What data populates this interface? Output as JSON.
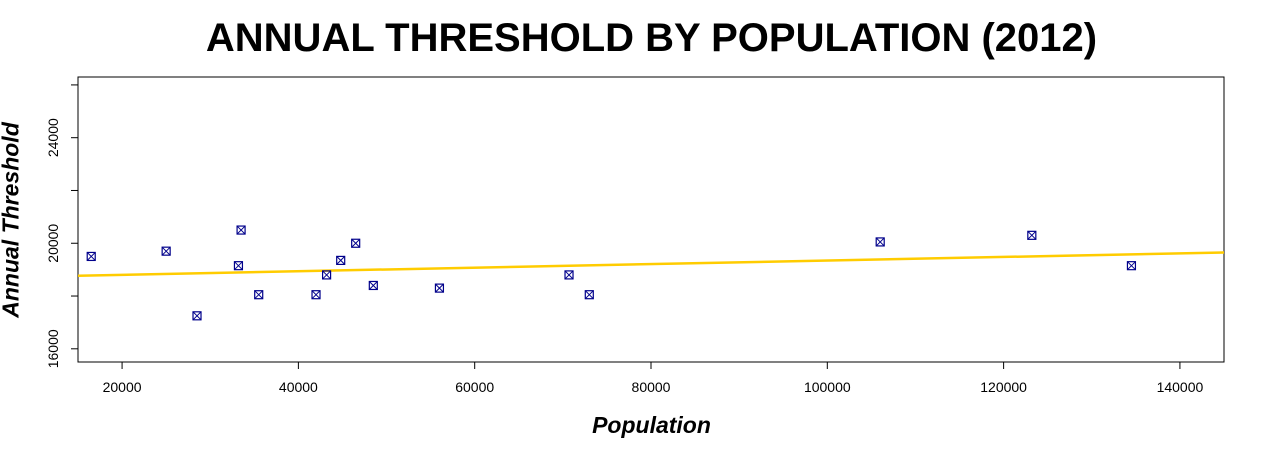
{
  "chart_data": {
    "type": "scatter",
    "title": "ANNUAL THRESHOLD BY POPULATION (2012)",
    "xlabel": "Population",
    "ylabel": "Annual Threshold",
    "xlim": [
      15000,
      145000
    ],
    "ylim": [
      15500,
      26300
    ],
    "x_ticks": [
      20000,
      40000,
      60000,
      80000,
      100000,
      120000,
      140000
    ],
    "y_ticks": [
      16000,
      18000,
      20000,
      22000,
      24000,
      26000
    ],
    "y_tick_labels": [
      "16000",
      "",
      "20000",
      "",
      "24000",
      ""
    ],
    "grid": false,
    "point_color": "#00008b",
    "points": [
      {
        "x": 16500,
        "y": 19500
      },
      {
        "x": 25000,
        "y": 19700
      },
      {
        "x": 28500,
        "y": 17250
      },
      {
        "x": 33200,
        "y": 19150
      },
      {
        "x": 33500,
        "y": 20500
      },
      {
        "x": 35500,
        "y": 18050
      },
      {
        "x": 42000,
        "y": 18050
      },
      {
        "x": 43200,
        "y": 18800
      },
      {
        "x": 44800,
        "y": 19350
      },
      {
        "x": 46500,
        "y": 20000
      },
      {
        "x": 48500,
        "y": 18400
      },
      {
        "x": 56000,
        "y": 18300
      },
      {
        "x": 70700,
        "y": 18800
      },
      {
        "x": 73000,
        "y": 18050
      },
      {
        "x": 106000,
        "y": 20050
      },
      {
        "x": 123200,
        "y": 20300
      },
      {
        "x": 134500,
        "y": 19150
      }
    ],
    "fit_line": {
      "color": "#ffcc00",
      "x": [
        15000,
        145000
      ],
      "y": [
        18770,
        19650
      ]
    }
  }
}
